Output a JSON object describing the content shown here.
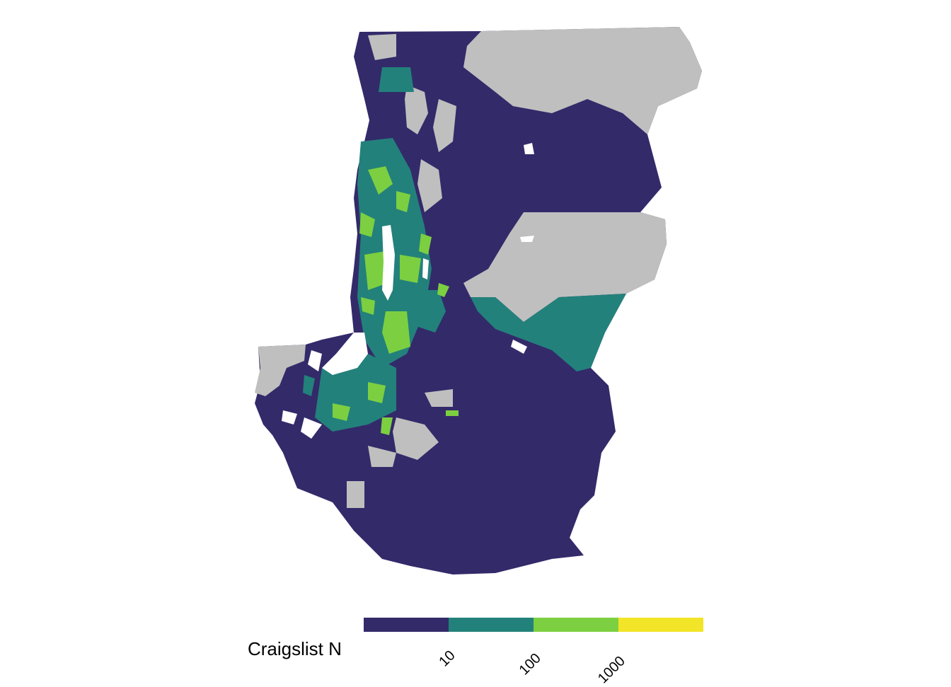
{
  "legend": {
    "title": "Craigslist N",
    "ticks": [
      "10",
      "100",
      "1000"
    ],
    "bins": [
      {
        "label": "<10",
        "color": "#332A6A"
      },
      {
        "label": "10-100",
        "color": "#23817B"
      },
      {
        "label": "100-1000",
        "color": "#7CCF40"
      },
      {
        "label": ">1000",
        "color": "#F2E527"
      }
    ]
  },
  "colors": {
    "no_data": "#BFBFBF",
    "water": "#FFFFFF",
    "low": "#332A6A",
    "mid": "#23817B",
    "high": "#7CCF40",
    "top": "#F2E527"
  }
}
